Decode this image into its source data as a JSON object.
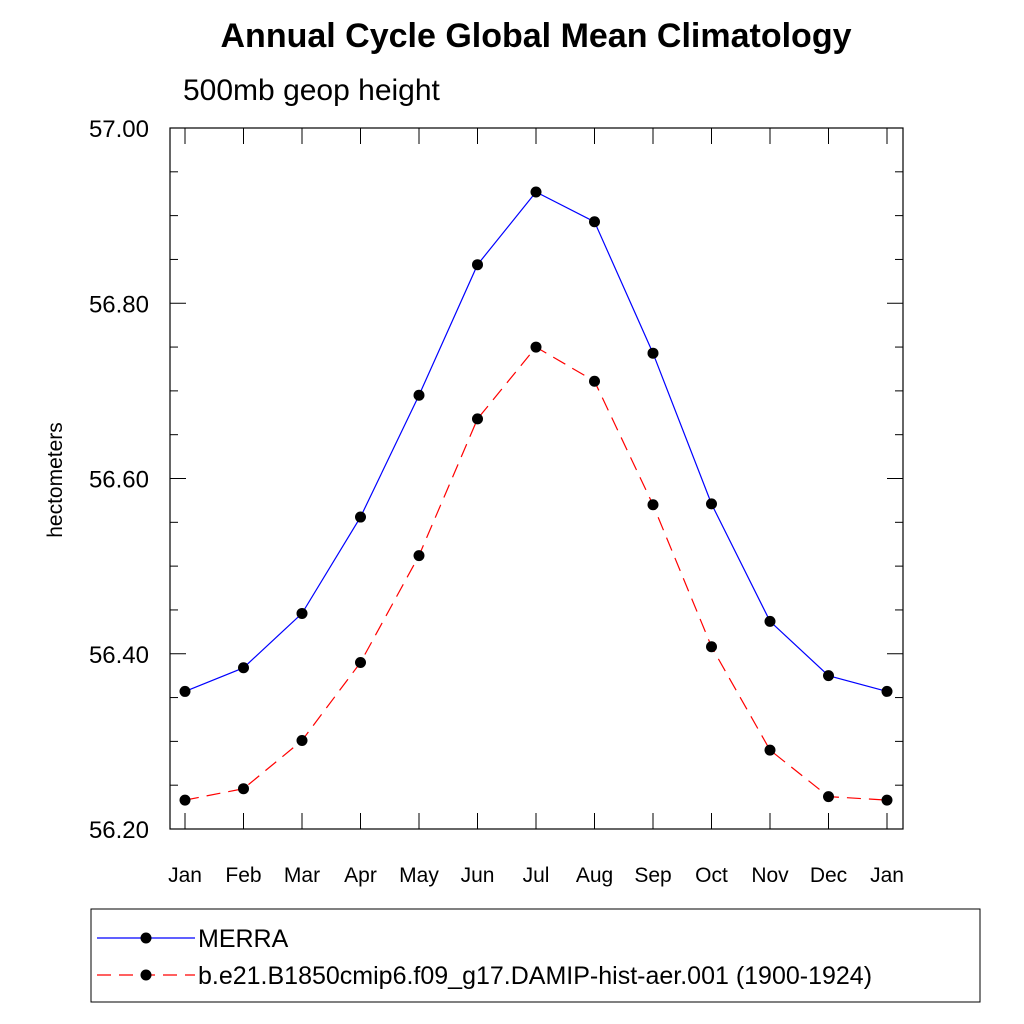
{
  "chart_data": {
    "type": "line",
    "title": "Annual Cycle Global Mean Climatology",
    "subtitle": "500mb geop height",
    "xlabel": "",
    "ylabel": "hectometers",
    "categories": [
      "Jan",
      "Feb",
      "Mar",
      "Apr",
      "May",
      "Jun",
      "Jul",
      "Aug",
      "Sep",
      "Oct",
      "Nov",
      "Dec",
      "Jan"
    ],
    "ylim": [
      56.2,
      57.0
    ],
    "yticks": [
      "56.20",
      "56.40",
      "56.60",
      "56.80",
      "57.00"
    ],
    "grid": false,
    "legend_position": "bottom",
    "series": [
      {
        "name": "MERRA",
        "color": "#0000ff",
        "line_style": "solid",
        "values": [
          56.357,
          56.384,
          56.446,
          56.556,
          56.695,
          56.844,
          56.927,
          56.893,
          56.743,
          56.571,
          56.437,
          56.375,
          56.357
        ]
      },
      {
        "name": "b.e21.B1850cmip6.f09_g17.DAMIP-hist-aer.001 (1900-1924)",
        "color": "#ff0000",
        "line_style": "dashed",
        "values": [
          56.233,
          56.246,
          56.301,
          56.39,
          56.512,
          56.668,
          56.75,
          56.711,
          56.57,
          56.408,
          56.29,
          56.237,
          56.233
        ]
      }
    ]
  }
}
